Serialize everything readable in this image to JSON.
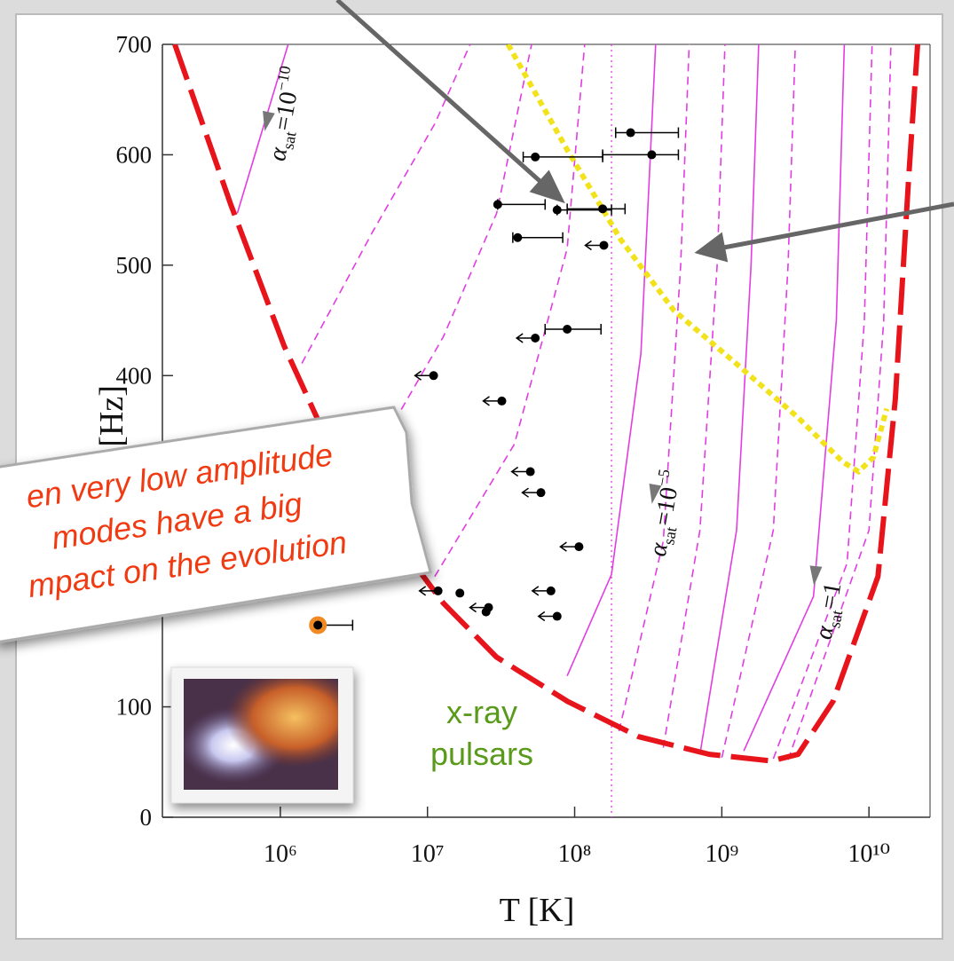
{
  "chart_data": {
    "type": "scatter",
    "x_label": "T [K]",
    "y_label": "f [Hz]",
    "x_log": true,
    "xlim": [
      158000.0,
      26000000000.0
    ],
    "ylim": [
      0,
      700
    ],
    "xticks": [
      {
        "value": 1000000.0,
        "label": "10⁶"
      },
      {
        "value": 10000000.0,
        "label": "10⁷"
      },
      {
        "value": 100000000.0,
        "label": "10⁸"
      },
      {
        "value": 1000000000.0,
        "label": "10⁹"
      },
      {
        "value": 10000000000.0,
        "label": "10¹⁰"
      }
    ],
    "yticks": [
      0,
      100,
      200,
      300,
      400,
      500,
      600,
      700
    ],
    "points": {
      "color": "#000000",
      "x": [
        240000000.0,
        54000000.0,
        334000000.0,
        30000000.0,
        76000000.0,
        155000000.0,
        41000000.0,
        158000000.0,
        54000000.0,
        89000000.0,
        11000000.0,
        32000000.0,
        50000000.0,
        59000000.0,
        107000000.0,
        11800000.0,
        16600000.0,
        26000000.0,
        25000000.0,
        69000000.0,
        76000000.0,
        1800000.0
      ],
      "y": [
        620,
        598,
        600,
        555,
        550,
        551,
        525,
        518,
        434,
        442,
        400,
        377,
        313,
        294,
        245,
        205,
        203,
        190,
        186,
        205,
        182,
        174
      ],
      "x_low": [
        190000000.0,
        44700000.0,
        155000000.0,
        30000000.0,
        76000000.0,
        89000000.0,
        38000000.0,
        null,
        null,
        63000000.0,
        null,
        null,
        null,
        null,
        null,
        null,
        null,
        null,
        null,
        null,
        null,
        1800000.0
      ],
      "x_high": [
        507000000.0,
        155000000.0,
        507000000.0,
        63000000.0,
        178000000.0,
        220000000.0,
        83000000.0,
        null,
        null,
        151000000.0,
        null,
        null,
        null,
        null,
        null,
        null,
        null,
        null,
        null,
        null,
        null,
        3100000.0
      ],
      "upper_limit": [
        false,
        false,
        false,
        false,
        false,
        false,
        false,
        true,
        true,
        false,
        true,
        true,
        true,
        true,
        true,
        true,
        false,
        true,
        false,
        true,
        true,
        false
      ],
      "highlight": [
        false,
        false,
        false,
        false,
        false,
        false,
        false,
        false,
        false,
        false,
        false,
        false,
        false,
        false,
        false,
        false,
        false,
        false,
        false,
        false,
        false,
        true
      ],
      "highlight_color": "#f08a24"
    },
    "boundary": {
      "color": "#e8141b",
      "x": [
        192000.0,
        460000.0,
        1060000.0,
        2430000.0,
        5600000.0,
        12800000.0,
        29500000.0,
        89500000.0,
        272000000.0,
        824000000.0,
        2170000000.0,
        3300000000.0,
        5700000000.0,
        11500000000.0,
        15100000000.0,
        18600000000.0,
        21400000000.0
      ],
      "y": [
        700,
        555,
        427,
        322,
        258,
        194,
        145,
        105,
        73,
        57,
        51,
        57,
        105,
        218,
        379,
        579,
        700
      ]
    },
    "limit_curve": {
      "color": "#f2e21c",
      "x": [
        35300000.0,
        89500000.0,
        206000000.0,
        473000000.0,
        1250000000.0,
        3300000000.0,
        6600000000.0,
        8500000000.0,
        10700000000.0,
        13200000000.0
      ],
      "y": [
        700,
        604,
        523,
        459,
        411,
        362,
        322,
        313,
        326,
        370
      ]
    },
    "curve_color": "#e23ce2",
    "curves": [
      {
        "style": "solid",
        "x": [
          510000.0,
          1130000.0
        ],
        "y": [
          547,
          700
        ]
      },
      {
        "style": "dashed",
        "x": [
          1400000.0,
          4270000.0,
          11200000.0,
          19500000.0
        ],
        "y": [
          411,
          531,
          628,
          700
        ]
      },
      {
        "style": "dashed",
        "x": [
          4860000.0,
          12800000.0,
          29500000.0,
          51000000.0
        ],
        "y": [
          338,
          435,
          547,
          700
        ]
      },
      {
        "style": "dashed",
        "x": [
          11200000.0,
          39000000.0,
          89000000.0,
          117000000.0
        ],
        "y": [
          218,
          338,
          515,
          700
        ]
      },
      {
        "style": "solid",
        "x": [
          89000000.0,
          178000000.0,
          282000000.0,
          355000000.0
        ],
        "y": [
          128,
          220,
          420,
          700
        ]
      },
      {
        "style": "dashed",
        "x": [
          200000000.0,
          400000000.0,
          525000000.0,
          600000000.0
        ],
        "y": [
          78,
          250,
          500,
          700
        ]
      },
      {
        "style": "dashed",
        "x": [
          400000000.0,
          710000000.0,
          930000000.0,
          1050000000.0
        ],
        "y": [
          63,
          260,
          500,
          700
        ]
      },
      {
        "style": "solid",
        "x": [
          710000000.0,
          1260000000.0,
          1580000000.0,
          1780000000.0
        ],
        "y": [
          57,
          260,
          500,
          700
        ]
      },
      {
        "style": "dashed",
        "x": [
          1000000000.0,
          2240000000.0,
          2820000000.0,
          3160000000.0
        ],
        "y": [
          54,
          260,
          500,
          700
        ]
      },
      {
        "style": "solid",
        "x": [
          1410000000.0,
          4200000000.0,
          6000000000.0,
          6800000000.0
        ],
        "y": [
          60,
          200,
          450,
          700
        ]
      },
      {
        "style": "dashed",
        "x": [
          2240000000.0,
          7100000000.0,
          9300000000.0,
          10500000000.0
        ],
        "y": [
          53,
          230,
          450,
          700
        ]
      },
      {
        "style": "dashed",
        "x": [
          2820000000.0,
          10000000000.0,
          12600000000.0,
          14100000000.0
        ],
        "y": [
          52,
          260,
          450,
          700
        ]
      }
    ],
    "dotted_line_x": 178000000.0,
    "curve_labels": [
      {
        "symbol": "α",
        "subscript": "sat",
        "text": "=10",
        "superscript": "−10"
      },
      {
        "symbol": "α",
        "subscript": "sat",
        "text": "=10",
        "superscript": "−5"
      },
      {
        "symbol": "α",
        "subscript": "sat",
        "text": "=1"
      }
    ],
    "region_label": [
      "x-ray",
      "pulsars"
    ],
    "note": [
      "en very low amplitude",
      "modes have a big",
      "mpact on the evolution"
    ]
  }
}
